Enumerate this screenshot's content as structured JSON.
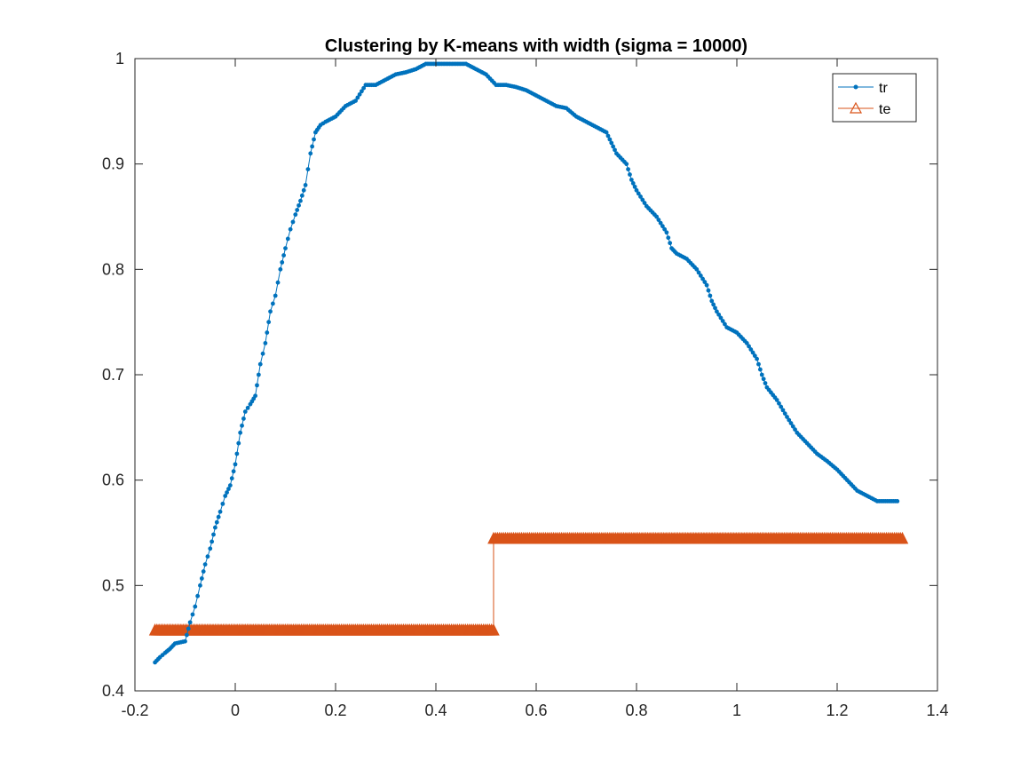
{
  "chart_data": {
    "type": "line",
    "title": "Clustering by K-means with width (sigma = 10000)",
    "xlabel": "",
    "ylabel": "",
    "xlim": [
      -0.2,
      1.4
    ],
    "ylim": [
      0.4,
      1.0
    ],
    "xticks": [
      "-0.2",
      "0",
      "0.2",
      "0.4",
      "0.6",
      "0.8",
      "1",
      "1.2",
      "1.4"
    ],
    "yticks": [
      "0.4",
      "0.5",
      "0.6",
      "0.7",
      "0.8",
      "0.9",
      "1"
    ],
    "grid": false,
    "legend_position": "top-right",
    "series": [
      {
        "name": "tr",
        "marker": "dot",
        "color": "#0072BD",
        "points": [
          [
            -0.16,
            0.427
          ],
          [
            -0.15,
            0.432
          ],
          [
            -0.14,
            0.436
          ],
          [
            -0.13,
            0.44
          ],
          [
            -0.12,
            0.445
          ],
          [
            -0.1,
            0.447
          ],
          [
            -0.09,
            0.465
          ],
          [
            -0.08,
            0.48
          ],
          [
            -0.07,
            0.5
          ],
          [
            -0.06,
            0.52
          ],
          [
            -0.05,
            0.535
          ],
          [
            -0.04,
            0.555
          ],
          [
            -0.03,
            0.57
          ],
          [
            -0.02,
            0.585
          ],
          [
            -0.01,
            0.595
          ],
          [
            0.0,
            0.615
          ],
          [
            0.01,
            0.645
          ],
          [
            0.02,
            0.665
          ],
          [
            0.03,
            0.672
          ],
          [
            0.04,
            0.68
          ],
          [
            0.05,
            0.71
          ],
          [
            0.06,
            0.73
          ],
          [
            0.07,
            0.76
          ],
          [
            0.08,
            0.775
          ],
          [
            0.09,
            0.8
          ],
          [
            0.1,
            0.82
          ],
          [
            0.11,
            0.838
          ],
          [
            0.12,
            0.852
          ],
          [
            0.13,
            0.865
          ],
          [
            0.14,
            0.88
          ],
          [
            0.15,
            0.91
          ],
          [
            0.16,
            0.93
          ],
          [
            0.17,
            0.937
          ],
          [
            0.18,
            0.94
          ],
          [
            0.2,
            0.945
          ],
          [
            0.22,
            0.955
          ],
          [
            0.24,
            0.96
          ],
          [
            0.26,
            0.975
          ],
          [
            0.28,
            0.975
          ],
          [
            0.3,
            0.98
          ],
          [
            0.32,
            0.985
          ],
          [
            0.34,
            0.987
          ],
          [
            0.36,
            0.99
          ],
          [
            0.38,
            0.995
          ],
          [
            0.4,
            0.995
          ],
          [
            0.42,
            0.995
          ],
          [
            0.44,
            0.995
          ],
          [
            0.46,
            0.995
          ],
          [
            0.48,
            0.99
          ],
          [
            0.5,
            0.985
          ],
          [
            0.52,
            0.975
          ],
          [
            0.54,
            0.975
          ],
          [
            0.56,
            0.973
          ],
          [
            0.58,
            0.97
          ],
          [
            0.6,
            0.965
          ],
          [
            0.62,
            0.96
          ],
          [
            0.64,
            0.955
          ],
          [
            0.66,
            0.953
          ],
          [
            0.68,
            0.945
          ],
          [
            0.7,
            0.94
          ],
          [
            0.72,
            0.935
          ],
          [
            0.74,
            0.93
          ],
          [
            0.75,
            0.92
          ],
          [
            0.76,
            0.91
          ],
          [
            0.78,
            0.9
          ],
          [
            0.79,
            0.885
          ],
          [
            0.8,
            0.875
          ],
          [
            0.82,
            0.86
          ],
          [
            0.84,
            0.85
          ],
          [
            0.86,
            0.835
          ],
          [
            0.87,
            0.82
          ],
          [
            0.88,
            0.815
          ],
          [
            0.9,
            0.81
          ],
          [
            0.92,
            0.8
          ],
          [
            0.94,
            0.785
          ],
          [
            0.95,
            0.77
          ],
          [
            0.96,
            0.76
          ],
          [
            0.98,
            0.745
          ],
          [
            1.0,
            0.74
          ],
          [
            1.02,
            0.73
          ],
          [
            1.04,
            0.715
          ],
          [
            1.05,
            0.7
          ],
          [
            1.06,
            0.688
          ],
          [
            1.08,
            0.676
          ],
          [
            1.1,
            0.66
          ],
          [
            1.12,
            0.645
          ],
          [
            1.14,
            0.635
          ],
          [
            1.16,
            0.625
          ],
          [
            1.18,
            0.618
          ],
          [
            1.2,
            0.61
          ],
          [
            1.22,
            0.6
          ],
          [
            1.24,
            0.59
          ],
          [
            1.26,
            0.585
          ],
          [
            1.28,
            0.58
          ],
          [
            1.3,
            0.58
          ],
          [
            1.32,
            0.58
          ]
        ]
      },
      {
        "name": "te",
        "marker": "triangle",
        "color": "#D95319",
        "points": [
          [
            -0.16,
            0.458
          ],
          [
            0.515,
            0.458
          ],
          [
            0.515,
            0.545
          ],
          [
            1.33,
            0.545
          ]
        ]
      }
    ]
  }
}
